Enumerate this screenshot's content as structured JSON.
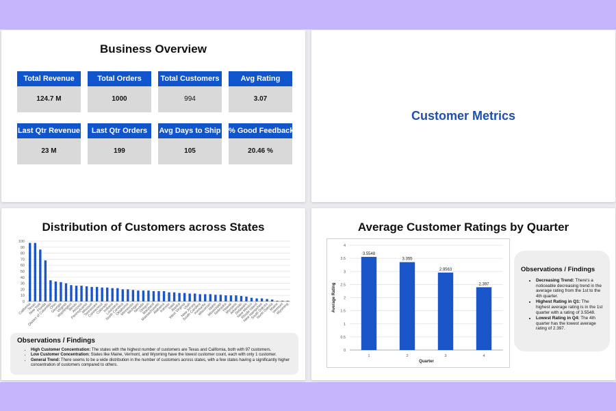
{
  "business_overview": {
    "title": "Business Overview",
    "kpis": [
      {
        "label": "Total Revenue",
        "value": "124.7 M"
      },
      {
        "label": "Total Orders",
        "value": "1000"
      },
      {
        "label": "Total Customers",
        "value": "994"
      },
      {
        "label": "Avg Rating",
        "value": "3.07"
      },
      {
        "label": "Last Qtr Revenue",
        "value": "23 M"
      },
      {
        "label": "Last Qtr Orders",
        "value": "199"
      },
      {
        "label": "Avg Days to Ship",
        "value": "105"
      },
      {
        "label": "% Good Feedback",
        "value": "20.46 %"
      }
    ]
  },
  "customer_metrics": {
    "title": "Customer Metrics"
  },
  "colors": {
    "accent": "#1155cc",
    "bar": "#1a56c9",
    "title_blue": "#1d4fae",
    "background": "#c4b5fd"
  },
  "states_panel": {
    "title": "Distribution of Customers across States",
    "observations": {
      "title": "Observations / Findings",
      "items": [
        {
          "bold": "High Customer Concentration:",
          "text": " The states with the highest number of customers are Texas and California, both with 97 customers."
        },
        {
          "bold": "Low Customer Concentration:",
          "text": " States like Maine, Vermont, and Wyoming have the lowest customer count, each with only 1 customer."
        },
        {
          "bold": "General Trend:",
          "text": " There seems to be a wide distribution in the number of customers across states, with a few states having a significantly higher concentration of customers compared to others."
        }
      ]
    }
  },
  "ratings_panel": {
    "title": "Average Customer Ratings by Quarter",
    "observations": {
      "title": "Observations / Findings",
      "items": [
        {
          "bold": "Decreasing Trend:",
          "text": " There's a noticeable decreasing trend in the average rating from the 1st to the 4th quarter."
        },
        {
          "bold": "Highest Rating in Q1:",
          "text": " The highest average rating is in the 1st quarter with a rating of 3.5548."
        },
        {
          "bold": "Lowest Rating in Q4:",
          "text": " The 4th quarter has the lowest average rating of 2.397."
        }
      ]
    }
  },
  "chart_data": [
    {
      "type": "bar",
      "title": "Distribution of Customers across States",
      "categories": [
        "California",
        "Texas",
        "New York",
        "Florida",
        "District of Columbia",
        "Ohio",
        "Georgia",
        "Virginia",
        "Washington",
        "Illinois",
        "Arizona",
        "Pennsylvania",
        "Missouri",
        "Tennessee",
        "Connecticut",
        "Colorado",
        "Indiana",
        "Louisiana",
        "North Carolina",
        "Oklahoma",
        "Minnesota",
        "Michigan",
        "Nevada",
        "Oregon",
        "Maryland",
        "Massachusetts",
        "Alabama",
        "Kansas",
        "Iowa",
        "Alaska",
        "West Virginia",
        "Utah",
        "New Jersey",
        "South Carolina",
        "Kentucky",
        "Wisconsin",
        "Idaho",
        "Mississippi",
        "Nebraska",
        "Hawaii",
        "Montana",
        "Arkansas",
        "Delaware",
        "New Mexico",
        "Rhode Island",
        "New Hampshire",
        "South Dakota",
        "North Dakota",
        "Maine",
        "Vermont",
        "Wyoming"
      ],
      "values": [
        97,
        97,
        86,
        68,
        35,
        33,
        32,
        30,
        27,
        26,
        26,
        25,
        24,
        24,
        23,
        23,
        22,
        22,
        20,
        20,
        19,
        18,
        18,
        18,
        17,
        17,
        17,
        15,
        15,
        14,
        14,
        13,
        13,
        12,
        12,
        12,
        11,
        11,
        10,
        10,
        10,
        9,
        8,
        6,
        5,
        5,
        4,
        3,
        1,
        1,
        1
      ],
      "ylim": [
        0,
        100
      ],
      "yticks": [
        0,
        10,
        20,
        30,
        40,
        50,
        60,
        70,
        80,
        90,
        100
      ],
      "xlabel": "",
      "ylabel": "",
      "grid": true
    },
    {
      "type": "bar",
      "title": "Average Customer Ratings by Quarter",
      "categories": [
        "1",
        "2",
        "3",
        "4"
      ],
      "values": [
        3.5548,
        3.355,
        2.9563,
        2.397
      ],
      "data_labels": [
        "3.5548",
        "3.355",
        "2.9563",
        "2.397"
      ],
      "xlabel": "Quarter",
      "ylabel": "Average Rating",
      "ylim": [
        0,
        4
      ],
      "yticks": [
        "0",
        "0.5",
        "1",
        "1.5",
        "2",
        "2.5",
        "3",
        "3.5",
        "4"
      ],
      "grid": true
    }
  ]
}
